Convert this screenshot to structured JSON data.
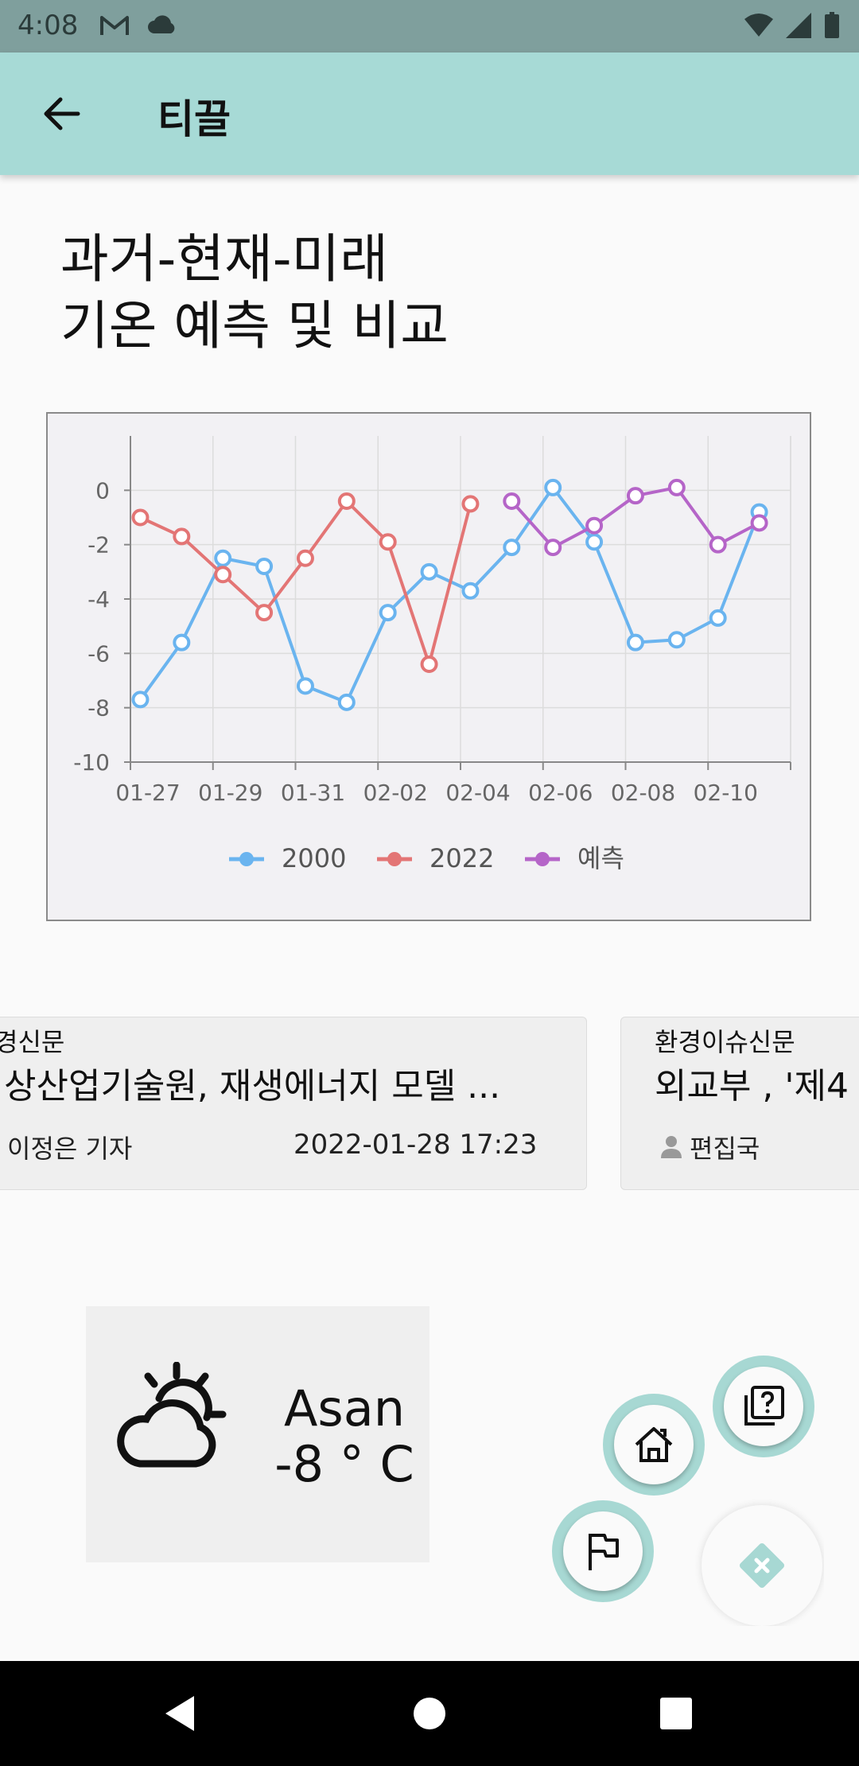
{
  "status_bar": {
    "time": "4:08",
    "left_icons": [
      "gmail-icon",
      "cloud-icon"
    ],
    "right_icons": [
      "wifi-icon",
      "signal-icon",
      "battery-icon"
    ]
  },
  "app_bar": {
    "title": "티끌",
    "back_icon": "arrow-left-icon"
  },
  "headline": {
    "line1": "과거-현재-미래",
    "line2": "기온 예측 및 비교"
  },
  "chart_data": {
    "type": "line",
    "x": [
      "01-27",
      "01-28",
      "01-29",
      "01-30",
      "01-31",
      "02-01",
      "02-02",
      "02-03",
      "02-04",
      "02-05",
      "02-06",
      "02-07",
      "02-08",
      "02-09",
      "02-10",
      "02-11"
    ],
    "x_tick_labels": [
      "01-27",
      "01-29",
      "01-31",
      "02-02",
      "02-04",
      "02-06",
      "02-08",
      "02-10"
    ],
    "ylim": [
      -10,
      2
    ],
    "y_ticks": [
      0,
      -2,
      -4,
      -6,
      -8,
      -10
    ],
    "grid": true,
    "legend_position": "bottom-center",
    "series": [
      {
        "name": "2000",
        "color": "#6ab4ef",
        "x": [
          "01-27",
          "01-28",
          "01-29",
          "01-30",
          "01-31",
          "02-01",
          "02-02",
          "02-03",
          "02-04",
          "02-05",
          "02-06",
          "02-07",
          "02-08",
          "02-09",
          "02-10",
          "02-11"
        ],
        "values": [
          -7.7,
          -5.6,
          -2.5,
          -2.8,
          -7.2,
          -7.8,
          -4.5,
          -3.0,
          -3.7,
          -2.1,
          0.1,
          -1.9,
          -5.6,
          -5.5,
          -4.7,
          -0.8
        ]
      },
      {
        "name": "2022",
        "color": "#e37575",
        "x": [
          "01-27",
          "01-28",
          "01-29",
          "01-30",
          "01-31",
          "02-01",
          "02-02",
          "02-03",
          "02-04"
        ],
        "values": [
          -1.0,
          -1.7,
          -3.1,
          -4.5,
          -2.5,
          -0.4,
          -1.9,
          -6.4,
          -0.5
        ]
      },
      {
        "name": "예측",
        "color": "#b565c8",
        "x": [
          "02-05",
          "02-06",
          "02-07",
          "02-08",
          "02-09",
          "02-10",
          "02-11"
        ],
        "values": [
          -0.4,
          -2.1,
          -1.3,
          -0.2,
          0.1,
          -2.0,
          -1.2
        ]
      }
    ]
  },
  "news": [
    {
      "source": "경신문",
      "title": "상산업기술원, 재생에너지 모델 ...",
      "author": "이정은 기자",
      "date": "2022-01-28 17:23"
    },
    {
      "source": "환경이슈신문",
      "title": "외교부 , '제4",
      "author": "편집국",
      "author_icon": "person-icon"
    }
  ],
  "weather": {
    "icon": "partly-cloudy-icon",
    "city": "Asan",
    "temp": "-8 ° C"
  },
  "fab_menu": {
    "items": [
      "help-icon",
      "home-icon",
      "flag-icon"
    ],
    "close_icon": "close-icon",
    "accent": "#a7d8d3"
  },
  "nav_bar": {
    "items": [
      "back-triangle-icon",
      "home-circle-icon",
      "recents-square-icon"
    ]
  },
  "colors": {
    "app_bar": "#a7dad6",
    "status_bar": "#7f9f9d"
  }
}
